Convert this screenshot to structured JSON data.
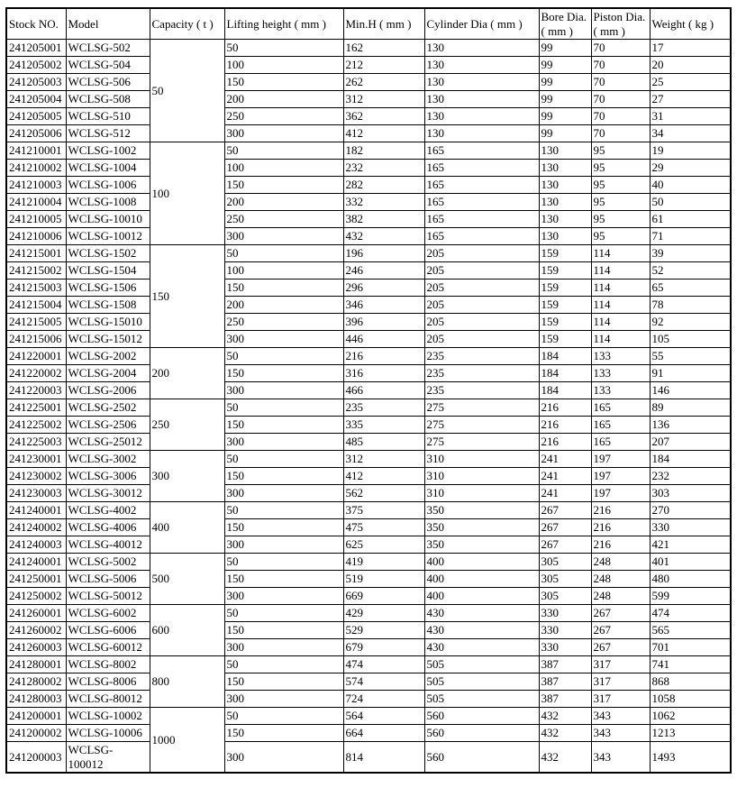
{
  "table": {
    "columns": [
      {
        "label": "Stock NO."
      },
      {
        "label": "Model"
      },
      {
        "label": "Capacity ( t )"
      },
      {
        "label": "Lifting height ( mm )"
      },
      {
        "label": "Min.H ( mm )"
      },
      {
        "label": "Cylinder Dia ( mm )"
      },
      {
        "label": "Bore Dia. ( mm )"
      },
      {
        "label": "Piston Dia. ( mm )"
      },
      {
        "label": "Weight ( kg )"
      }
    ],
    "groups": [
      {
        "capacity": "50",
        "rows": [
          {
            "stock": "241205001",
            "model": "WCLSG-502",
            "lifting_height": "50",
            "min_h": "162",
            "cylinder_dia": "130",
            "bore_dia": "99",
            "piston_dia": "70",
            "weight": "17"
          },
          {
            "stock": "241205002",
            "model": "WCLSG-504",
            "lifting_height": "100",
            "min_h": "212",
            "cylinder_dia": "130",
            "bore_dia": "99",
            "piston_dia": "70",
            "weight": "20"
          },
          {
            "stock": "241205003",
            "model": "WCLSG-506",
            "lifting_height": "150",
            "min_h": "262",
            "cylinder_dia": "130",
            "bore_dia": "99",
            "piston_dia": "70",
            "weight": "25"
          },
          {
            "stock": "241205004",
            "model": "WCLSG-508",
            "lifting_height": "200",
            "min_h": "312",
            "cylinder_dia": "130",
            "bore_dia": "99",
            "piston_dia": "70",
            "weight": "27"
          },
          {
            "stock": "241205005",
            "model": "WCLSG-510",
            "lifting_height": "250",
            "min_h": "362",
            "cylinder_dia": "130",
            "bore_dia": "99",
            "piston_dia": "70",
            "weight": "31"
          },
          {
            "stock": "241205006",
            "model": "WCLSG-512",
            "lifting_height": "300",
            "min_h": "412",
            "cylinder_dia": "130",
            "bore_dia": "99",
            "piston_dia": "70",
            "weight": "34"
          }
        ]
      },
      {
        "capacity": "100",
        "rows": [
          {
            "stock": "241210001",
            "model": "WCLSG-1002",
            "lifting_height": "50",
            "min_h": "182",
            "cylinder_dia": "165",
            "bore_dia": "130",
            "piston_dia": "95",
            "weight": "19"
          },
          {
            "stock": "241210002",
            "model": "WCLSG-1004",
            "lifting_height": "100",
            "min_h": "232",
            "cylinder_dia": "165",
            "bore_dia": "130",
            "piston_dia": "95",
            "weight": "29"
          },
          {
            "stock": "241210003",
            "model": "WCLSG-1006",
            "lifting_height": "150",
            "min_h": "282",
            "cylinder_dia": "165",
            "bore_dia": "130",
            "piston_dia": "95",
            "weight": "40"
          },
          {
            "stock": "241210004",
            "model": "WCLSG-1008",
            "lifting_height": "200",
            "min_h": "332",
            "cylinder_dia": "165",
            "bore_dia": "130",
            "piston_dia": "95",
            "weight": "50"
          },
          {
            "stock": "241210005",
            "model": "WCLSG-10010",
            "lifting_height": "250",
            "min_h": "382",
            "cylinder_dia": "165",
            "bore_dia": "130",
            "piston_dia": "95",
            "weight": "61"
          },
          {
            "stock": "241210006",
            "model": "WCLSG-10012",
            "lifting_height": "300",
            "min_h": "432",
            "cylinder_dia": "165",
            "bore_dia": "130",
            "piston_dia": "95",
            "weight": "71"
          }
        ]
      },
      {
        "capacity": "150",
        "rows": [
          {
            "stock": "241215001",
            "model": "WCLSG-1502",
            "lifting_height": "50",
            "min_h": "196",
            "cylinder_dia": "205",
            "bore_dia": "159",
            "piston_dia": "114",
            "weight": "39"
          },
          {
            "stock": "241215002",
            "model": "WCLSG-1504",
            "lifting_height": "100",
            "min_h": "246",
            "cylinder_dia": "205",
            "bore_dia": "159",
            "piston_dia": "114",
            "weight": "52"
          },
          {
            "stock": "241215003",
            "model": "WCLSG-1506",
            "lifting_height": "150",
            "min_h": "296",
            "cylinder_dia": "205",
            "bore_dia": "159",
            "piston_dia": "114",
            "weight": "65"
          },
          {
            "stock": "241215004",
            "model": "WCLSG-1508",
            "lifting_height": "200",
            "min_h": "346",
            "cylinder_dia": "205",
            "bore_dia": "159",
            "piston_dia": "114",
            "weight": "78"
          },
          {
            "stock": "241215005",
            "model": "WCLSG-15010",
            "lifting_height": "250",
            "min_h": "396",
            "cylinder_dia": "205",
            "bore_dia": "159",
            "piston_dia": "114",
            "weight": "92"
          },
          {
            "stock": "241215006",
            "model": "WCLSG-15012",
            "lifting_height": "300",
            "min_h": "446",
            "cylinder_dia": "205",
            "bore_dia": "159",
            "piston_dia": "114",
            "weight": "105"
          }
        ]
      },
      {
        "capacity": "200",
        "rows": [
          {
            "stock": "241220001",
            "model": "WCLSG-2002",
            "lifting_height": "50",
            "min_h": "216",
            "cylinder_dia": "235",
            "bore_dia": "184",
            "piston_dia": "133",
            "weight": "55"
          },
          {
            "stock": "241220002",
            "model": "WCLSG-2004",
            "lifting_height": "150",
            "min_h": "316",
            "cylinder_dia": "235",
            "bore_dia": "184",
            "piston_dia": "133",
            "weight": "91"
          },
          {
            "stock": "241220003",
            "model": "WCLSG-2006",
            "lifting_height": "300",
            "min_h": "466",
            "cylinder_dia": "235",
            "bore_dia": "184",
            "piston_dia": "133",
            "weight": "146"
          }
        ]
      },
      {
        "capacity": "250",
        "rows": [
          {
            "stock": "241225001",
            "model": "WCLSG-2502",
            "lifting_height": "50",
            "min_h": "235",
            "cylinder_dia": "275",
            "bore_dia": "216",
            "piston_dia": "165",
            "weight": "89"
          },
          {
            "stock": "241225002",
            "model": "WCLSG-2506",
            "lifting_height": "150",
            "min_h": "335",
            "cylinder_dia": "275",
            "bore_dia": "216",
            "piston_dia": "165",
            "weight": "136"
          },
          {
            "stock": "241225003",
            "model": "WCLSG-25012",
            "lifting_height": "300",
            "min_h": "485",
            "cylinder_dia": "275",
            "bore_dia": "216",
            "piston_dia": "165",
            "weight": "207"
          }
        ]
      },
      {
        "capacity": "300",
        "rows": [
          {
            "stock": "241230001",
            "model": "WCLSG-3002",
            "lifting_height": "50",
            "min_h": "312",
            "cylinder_dia": "310",
            "bore_dia": "241",
            "piston_dia": "197",
            "weight": "184"
          },
          {
            "stock": "241230002",
            "model": "WCLSG-3006",
            "lifting_height": "150",
            "min_h": "412",
            "cylinder_dia": "310",
            "bore_dia": "241",
            "piston_dia": "197",
            "weight": "232"
          },
          {
            "stock": "241230003",
            "model": "WCLSG-30012",
            "lifting_height": "300",
            "min_h": "562",
            "cylinder_dia": "310",
            "bore_dia": "241",
            "piston_dia": "197",
            "weight": "303"
          }
        ]
      },
      {
        "capacity": "400",
        "rows": [
          {
            "stock": "241240001",
            "model": "WCLSG-4002",
            "lifting_height": "50",
            "min_h": "375",
            "cylinder_dia": "350",
            "bore_dia": "267",
            "piston_dia": "216",
            "weight": "270"
          },
          {
            "stock": "241240002",
            "model": "WCLSG-4006",
            "lifting_height": "150",
            "min_h": "475",
            "cylinder_dia": "350",
            "bore_dia": "267",
            "piston_dia": "216",
            "weight": "330"
          },
          {
            "stock": "241240003",
            "model": "WCLSG-40012",
            "lifting_height": "300",
            "min_h": "625",
            "cylinder_dia": "350",
            "bore_dia": "267",
            "piston_dia": "216",
            "weight": "421"
          }
        ]
      },
      {
        "capacity": "500",
        "rows": [
          {
            "stock": "241240001",
            "model": "WCLSG-5002",
            "lifting_height": "50",
            "min_h": "419",
            "cylinder_dia": "400",
            "bore_dia": "305",
            "piston_dia": "248",
            "weight": "401"
          },
          {
            "stock": "241250001",
            "model": "WCLSG-5006",
            "lifting_height": "150",
            "min_h": "519",
            "cylinder_dia": "400",
            "bore_dia": "305",
            "piston_dia": "248",
            "weight": "480"
          },
          {
            "stock": "241250002",
            "model": "WCLSG-50012",
            "lifting_height": "300",
            "min_h": "669",
            "cylinder_dia": "400",
            "bore_dia": "305",
            "piston_dia": "248",
            "weight": "599"
          }
        ]
      },
      {
        "capacity": "600",
        "rows": [
          {
            "stock": "241260001",
            "model": "WCLSG-6002",
            "lifting_height": "50",
            "min_h": "429",
            "cylinder_dia": "430",
            "bore_dia": "330",
            "piston_dia": "267",
            "weight": "474"
          },
          {
            "stock": "241260002",
            "model": "WCLSG-6006",
            "lifting_height": "150",
            "min_h": "529",
            "cylinder_dia": "430",
            "bore_dia": "330",
            "piston_dia": "267",
            "weight": "565"
          },
          {
            "stock": "241260003",
            "model": "WCLSG-60012",
            "lifting_height": "300",
            "min_h": "679",
            "cylinder_dia": "430",
            "bore_dia": "330",
            "piston_dia": "267",
            "weight": "701"
          }
        ]
      },
      {
        "capacity": "800",
        "rows": [
          {
            "stock": "241280001",
            "model": "WCLSG-8002",
            "lifting_height": "50",
            "min_h": "474",
            "cylinder_dia": "505",
            "bore_dia": "387",
            "piston_dia": "317",
            "weight": "741"
          },
          {
            "stock": "241280002",
            "model": "WCLSG-8006",
            "lifting_height": "150",
            "min_h": "574",
            "cylinder_dia": "505",
            "bore_dia": "387",
            "piston_dia": "317",
            "weight": "868"
          },
          {
            "stock": "241280003",
            "model": "WCLSG-80012",
            "lifting_height": "300",
            "min_h": "724",
            "cylinder_dia": "505",
            "bore_dia": "387",
            "piston_dia": "317",
            "weight": "1058"
          }
        ]
      },
      {
        "capacity": "1000",
        "rows": [
          {
            "stock": "241200001",
            "model": "WCLSG-10002",
            "lifting_height": "50",
            "min_h": "564",
            "cylinder_dia": "560",
            "bore_dia": "432",
            "piston_dia": "343",
            "weight": "1062"
          },
          {
            "stock": "241200002",
            "model": "WCLSG-10006",
            "lifting_height": "150",
            "min_h": "664",
            "cylinder_dia": "560",
            "bore_dia": "432",
            "piston_dia": "343",
            "weight": "1213"
          },
          {
            "stock": "241200003",
            "model": "WCLSG-\n100012",
            "lifting_height": "300",
            "min_h": "814",
            "cylinder_dia": "560",
            "bore_dia": "432",
            "piston_dia": "343",
            "weight": "1493"
          }
        ]
      }
    ]
  },
  "colors": {
    "border": "#000000",
    "background": "#ffffff",
    "text": "#000000"
  }
}
